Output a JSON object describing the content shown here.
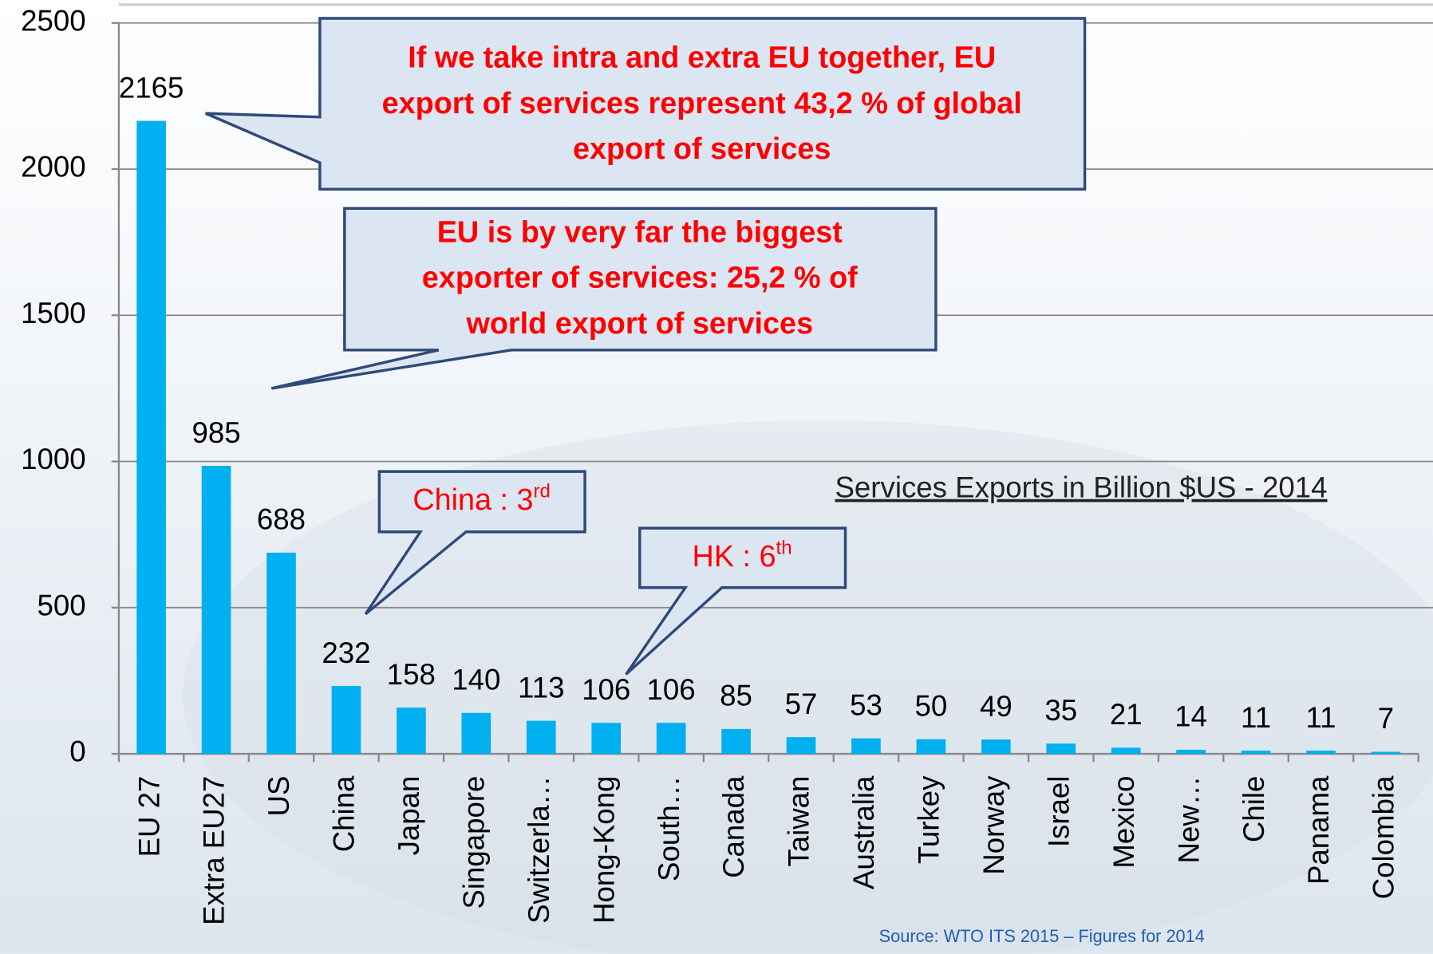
{
  "chart_data": {
    "type": "bar",
    "subtitle": "Services Exports in Billion $US - 2014",
    "source": "Source: WTO ITS 2015 – Figures for 2014",
    "categories": [
      "EU 27",
      "Extra EU27",
      "US",
      "China",
      "Japan",
      "Singapore",
      "Switzerla…",
      "Hong-Kong",
      "South…",
      "Canada",
      "Taiwan",
      "Australia",
      "Turkey",
      "Norway",
      "Israel",
      "Mexico",
      "New…",
      "Chile",
      "Panama",
      "Colombia"
    ],
    "values": [
      2165,
      985,
      688,
      232,
      158,
      140,
      113,
      106,
      106,
      85,
      57,
      53,
      50,
      49,
      35,
      21,
      14,
      11,
      11,
      7
    ],
    "color": "#00b0f0",
    "ylim": [
      0,
      2500
    ],
    "yticks": [
      0,
      500,
      1000,
      1500,
      2000,
      2500
    ],
    "grid": true,
    "annotations": [
      {
        "lines": [
          "If we take intra and extra EU together,  EU",
          "export of services represent 43,2 % of global",
          "export of services"
        ]
      },
      {
        "lines": [
          "EU is by very far the biggest",
          "exporter of services: 25,2 % of",
          "world export of services"
        ]
      },
      {
        "text": "China : 3",
        "sup": "rd"
      },
      {
        "text": "HK : 6",
        "sup": "th"
      }
    ]
  }
}
